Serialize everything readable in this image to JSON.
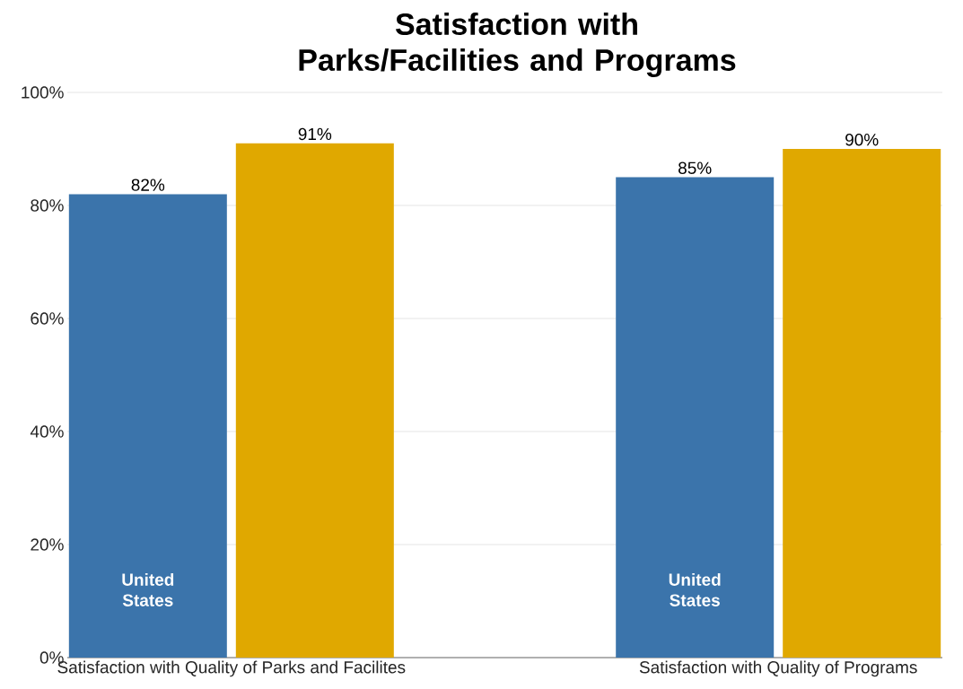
{
  "chart_data": {
    "type": "bar",
    "title": "Satisfaction with Parks/Facilities and Programs",
    "categories": [
      "Satisfaction with Quality of Parks and Facilites",
      "Satisfaction with Quality of Programs"
    ],
    "series": [
      {
        "name": "United States",
        "color": "#3b74ab",
        "values": [
          82,
          85
        ],
        "value_labels": [
          "82%",
          "85%"
        ]
      },
      {
        "color": "#e0a800",
        "values": [
          91,
          90
        ],
        "value_labels": [
          "91%",
          "90%"
        ]
      }
    ],
    "ylim": [
      0,
      100
    ],
    "yticks": [
      {
        "value": 0,
        "label": "0%"
      },
      {
        "value": 20,
        "label": "20%"
      },
      {
        "value": 40,
        "label": "40%"
      },
      {
        "value": 60,
        "label": "60%"
      },
      {
        "value": 80,
        "label": "80%"
      },
      {
        "value": 100,
        "label": "100%"
      }
    ],
    "grid": "y"
  }
}
